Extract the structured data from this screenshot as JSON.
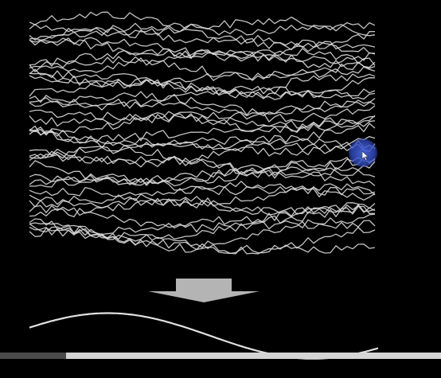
{
  "colors": {
    "background": "#000000",
    "trace": "#d8d8d8",
    "arrow": "#b4b4b4",
    "cursor_highlight": "#4664dc",
    "progress_track": "#d4d4d4",
    "progress_fill": "#4a4a4a"
  },
  "icons": {
    "arrow": "down-arrow-icon",
    "cursor": "mouse-pointer-icon"
  },
  "signal_stack": {
    "trace_count": 40
  },
  "playback": {
    "progress": 0.15
  }
}
